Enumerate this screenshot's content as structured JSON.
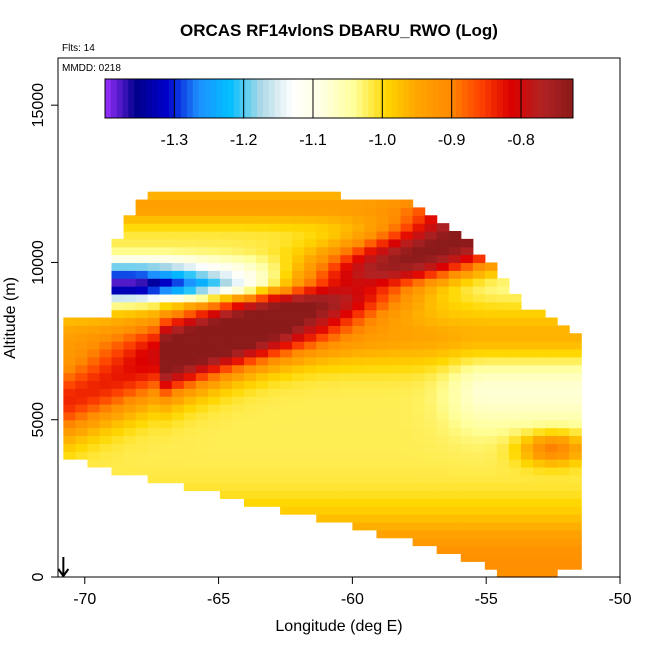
{
  "chart_data": {
    "type": "heatmap",
    "title": "ORCAS RF14vlonS DBARU_RWO (Log)",
    "annotations": {
      "flights": "Flts: 14",
      "date": "MMDD: 0218"
    },
    "xlabel": "Longitude (deg E)",
    "ylabel": "Altitude (m)",
    "xlim": [
      -71,
      -50
    ],
    "ylim": [
      0,
      16500
    ],
    "x_ticks": [
      -70,
      -65,
      -60,
      -55,
      -50
    ],
    "x_tick_labels": [
      "-70",
      "-65",
      "-60",
      "-55",
      "-50"
    ],
    "y_ticks": [
      0,
      5000,
      10000,
      15000
    ],
    "y_tick_labels": [
      "0",
      "5000",
      "10000",
      "15000"
    ],
    "colorbar": {
      "range": [
        -1.4,
        -0.725
      ],
      "ticks": [
        -1.3,
        -1.2,
        -1.1,
        -1.0,
        -0.9,
        -0.8
      ],
      "tick_labels": [
        "-1.3",
        "-1.2",
        "-1.1",
        "-1.0",
        "-0.9",
        "-0.8"
      ],
      "colors": [
        "#9b30ff",
        "#00008b",
        "#0000cd",
        "#1e90ff",
        "#00bfff",
        "#add8e6",
        "#ffffff",
        "#ffffe0",
        "#ffff99",
        "#ffd700",
        "#ffa500",
        "#ff8c00",
        "#ff4500",
        "#dd0000",
        "#b22222",
        "#8b1a1a"
      ]
    },
    "domain": {
      "top_longitudes": [
        -69.5,
        -68.5,
        -67.5,
        -66.0,
        -64.0,
        -62.0,
        -60.0,
        -58.0,
        -56.5,
        -55.0,
        -53.5,
        -51.5
      ],
      "top_altitudes": [
        9500,
        11200,
        12300,
        12300,
        12300,
        12200,
        12100,
        12000,
        11300,
        10100,
        8600,
        7700
      ],
      "bottom_longitudes": [
        -70.8,
        -70.0,
        -68.0,
        -66.0,
        -64.0,
        -62.0,
        -60.0,
        -58.0,
        -56.0,
        -55.0,
        -54.0,
        -53.0,
        -51.8
      ],
      "bottom_altitudes": [
        3800,
        3600,
        3200,
        2800,
        2400,
        2000,
        1600,
        1200,
        600,
        300,
        0,
        0,
        300
      ]
    },
    "grid": false,
    "legend": "colorbar at top, inside plot area",
    "marker": "arrow at x = -70.8, pointing down to altitude 0"
  }
}
